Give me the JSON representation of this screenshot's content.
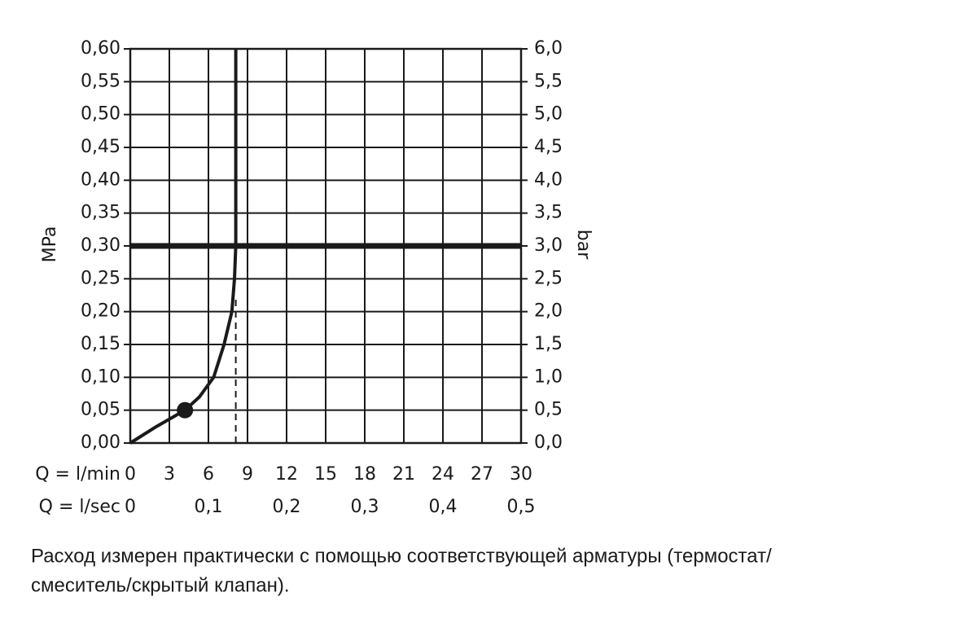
{
  "chart_data": {
    "type": "line",
    "ylabel": "MPa",
    "y2label": "bar",
    "x_row_label": "Q = l/min",
    "x2_row_label": "Q = l/sec",
    "caption": [
      "Расход измерен практически с помощью соответствующей арматуры (термостат/",
      "смеситель/скрытый клапан)."
    ],
    "xlim": [
      0,
      30
    ],
    "xticks": [
      0,
      3,
      6,
      9,
      12,
      15,
      18,
      21,
      24,
      27,
      30
    ],
    "x2lim": [
      0,
      0.5
    ],
    "x2ticks": [
      0,
      {
        "value": 0.1,
        "label": "0,1"
      },
      {
        "value": 0.2,
        "label": "0,2"
      },
      {
        "value": 0.3,
        "label": "0,3"
      },
      {
        "value": 0.4,
        "label": "0,4"
      },
      {
        "value": 0.5,
        "label": "0,5"
      }
    ],
    "ylim": [
      0,
      0.6
    ],
    "yticks": [
      {
        "value": 0,
        "label": "0,00"
      },
      {
        "value": 0.05,
        "label": "0,05"
      },
      {
        "value": 0.1,
        "label": "0,10"
      },
      {
        "value": 0.15,
        "label": "0,15"
      },
      {
        "value": 0.2,
        "label": "0,20"
      },
      {
        "value": 0.25,
        "label": "0,25"
      },
      {
        "value": 0.3,
        "label": "0,30"
      },
      {
        "value": 0.35,
        "label": "0,35"
      },
      {
        "value": 0.4,
        "label": "0,40"
      },
      {
        "value": 0.45,
        "label": "0,45"
      },
      {
        "value": 0.5,
        "label": "0,50"
      },
      {
        "value": 0.55,
        "label": "0,55"
      },
      {
        "value": 0.6,
        "label": "0,60"
      }
    ],
    "y2lim": [
      0,
      6
    ],
    "y2ticks": [
      {
        "value": 0,
        "label": "0,0"
      },
      {
        "value": 0.5,
        "label": "0,5"
      },
      {
        "value": 1,
        "label": "1,0"
      },
      {
        "value": 1.5,
        "label": "1,5"
      },
      {
        "value": 2,
        "label": "2,0"
      },
      {
        "value": 2.5,
        "label": "2,5"
      },
      {
        "value": 3,
        "label": "3,0"
      },
      {
        "value": 3.5,
        "label": "3,5"
      },
      {
        "value": 4,
        "label": "4,0"
      },
      {
        "value": 4.5,
        "label": "4,5"
      },
      {
        "value": 5,
        "label": "5,0"
      },
      {
        "value": 5.5,
        "label": "5,5"
      },
      {
        "value": 6,
        "label": "6,0"
      }
    ],
    "grid": true,
    "series": [
      {
        "color": "#1a1a1a",
        "x": [
          0,
          2,
          4.2,
          5.3,
          6.4,
          7.2,
          7.8,
          8.0,
          8.1,
          8.1
        ],
        "values": [
          0,
          0.025,
          0.05,
          0.07,
          0.1,
          0.15,
          0.2,
          0.25,
          0.3,
          0.6
        ]
      }
    ],
    "marker": {
      "x": 4.2,
      "y": 0.05
    },
    "hline": 0.3,
    "dashed_vline": {
      "x": 8.1,
      "y": [
        0,
        0.22
      ]
    }
  }
}
